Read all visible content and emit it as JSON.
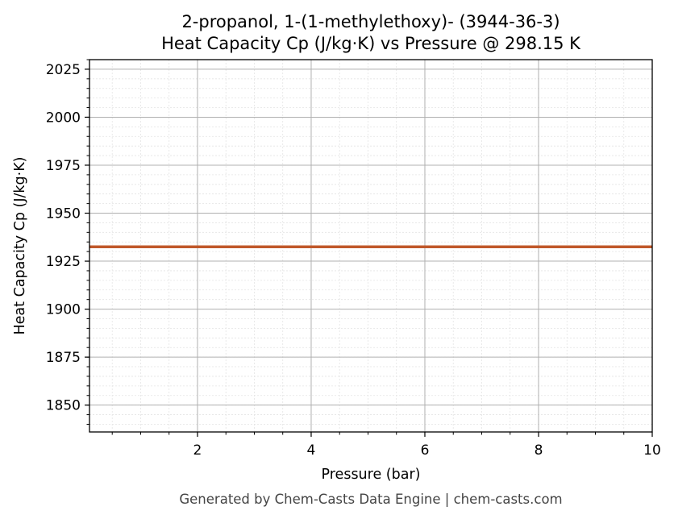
{
  "chart_data": {
    "type": "line",
    "title": "2-propanol, 1-(1-methylethoxy)- (3944-36-3)",
    "subtitle": "Heat Capacity Cp (J/kg·K) vs Pressure @ 298.15 K",
    "xlabel": "Pressure (bar)",
    "ylabel": "Heat Capacity Cp (J/kg·K)",
    "xlim": [
      0.1,
      10
    ],
    "ylim": [
      1836,
      2030
    ],
    "x_ticks": [
      2,
      4,
      6,
      8,
      10
    ],
    "y_ticks": [
      1850,
      1875,
      1900,
      1925,
      1950,
      1975,
      2000,
      2025
    ],
    "grid": true,
    "series": [
      {
        "color": "#c0582a",
        "x": [
          0.1,
          1,
          2,
          3,
          4,
          5,
          6,
          7,
          8,
          9,
          10
        ],
        "y": [
          1932.5,
          1932.5,
          1932.5,
          1932.5,
          1932.5,
          1932.5,
          1932.5,
          1932.5,
          1932.5,
          1932.5,
          1932.5
        ]
      }
    ]
  },
  "footer": "Generated by Chem-Casts Data Engine | chem-casts.com",
  "colors": {
    "line": "#c0582a",
    "major_grid": "#b0b0b0",
    "minor_grid": "#e4e4e4",
    "footer_text": "#444444"
  }
}
